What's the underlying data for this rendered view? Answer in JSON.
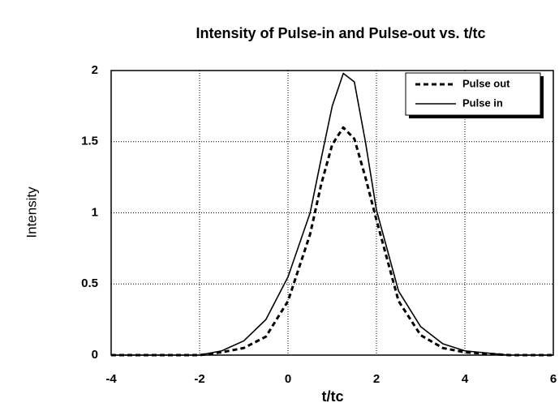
{
  "chart_data": {
    "type": "line",
    "title": "Intensity of Pulse-in and Pulse-out vs. t/tc",
    "xlabel": "t/tc",
    "ylabel": "Intensity",
    "x": [
      -4,
      -3,
      -2,
      -1.5,
      -1,
      -0.5,
      0,
      0.5,
      0.75,
      1,
      1.25,
      1.5,
      1.75,
      2,
      2.5,
      3,
      3.5,
      4,
      5,
      6
    ],
    "series": [
      {
        "name": "Pulse out",
        "color": "#000000",
        "dash": true,
        "values": [
          0,
          0,
          0,
          0.02,
          0.05,
          0.13,
          0.38,
          0.85,
          1.2,
          1.48,
          1.6,
          1.52,
          1.25,
          0.95,
          0.38,
          0.14,
          0.05,
          0.02,
          0,
          0
        ]
      },
      {
        "name": "Pulse in",
        "color": "#000000",
        "dash": false,
        "values": [
          0,
          0,
          0,
          0.03,
          0.1,
          0.25,
          0.55,
          1.0,
          1.38,
          1.75,
          1.98,
          1.92,
          1.5,
          1.02,
          0.45,
          0.2,
          0.08,
          0.03,
          0,
          0
        ]
      }
    ],
    "xlim": [
      -4,
      6
    ],
    "xticks": [
      -4,
      -2,
      0,
      2,
      4,
      6
    ],
    "ylim": [
      0,
      2
    ],
    "yticks": [
      0,
      0.5,
      1,
      1.5,
      2
    ],
    "grid": true,
    "legend": "upper right"
  }
}
